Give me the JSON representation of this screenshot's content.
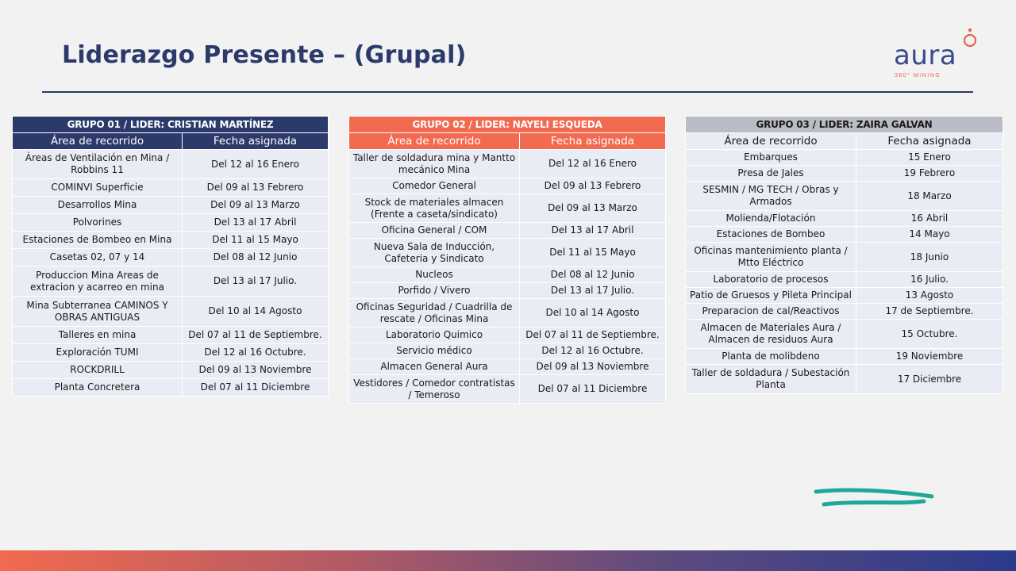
{
  "title": "Liderazgo Presente – (Grupal)",
  "logo": {
    "word": "aura",
    "tagline": "360° MINING"
  },
  "colors": {
    "navy": "#2b3a6b",
    "coral": "#f26a4f",
    "gray": "#b9bcc4",
    "teal": "#1fa89a"
  },
  "groups": [
    {
      "title": "GRUPO 01 / LIDER: CRISTIAN MARTÍNEZ",
      "headers": [
        "Área de recorrido",
        "Fecha asignada"
      ],
      "rows": [
        [
          "Áreas de Ventilación en Mina / Robbins 11",
          "Del 12 al 16 Enero"
        ],
        [
          "COMINVI Superficie",
          "Del 09 al 13 Febrero"
        ],
        [
          "Desarrollos Mina",
          "Del 09 al 13 Marzo"
        ],
        [
          "Polvorines",
          "Del 13 al 17 Abril"
        ],
        [
          "Estaciones de Bombeo en Mina",
          "Del 11 al 15 Mayo"
        ],
        [
          "Casetas 02, 07 y 14",
          "Del 08 al 12 Junio"
        ],
        [
          "Produccion Mina Areas de extracion y acarreo en mina",
          "Del 13 al 17 Julio."
        ],
        [
          "Mina Subterranea CAMINOS Y OBRAS ANTIGUAS",
          "Del 10 al 14 Agosto"
        ],
        [
          "Talleres en mina",
          "Del 07 al 11 de Septiembre."
        ],
        [
          "Exploración TUMI",
          "Del 12 al 16 Octubre."
        ],
        [
          "ROCKDRILL",
          "Del 09 al 13 Noviembre"
        ],
        [
          "Planta Concretera",
          "Del 07 al 11 Diciembre"
        ]
      ]
    },
    {
      "title": "GRUPO 02 / LIDER: NAYELI ESQUEDA",
      "headers": [
        "Área de recorrido",
        "Fecha asignada"
      ],
      "rows": [
        [
          "Taller de soldadura mina y Mantto mecánico Mina",
          "Del 12 al 16 Enero"
        ],
        [
          "Comedor General",
          "Del 09 al 13 Febrero"
        ],
        [
          "Stock de materiales almacen (Frente a caseta/sindicato)",
          "Del 09 al 13 Marzo"
        ],
        [
          "Oficina General / COM",
          "Del 13 al 17 Abril"
        ],
        [
          "Nueva Sala de Inducción, Cafeteria y Sindicato",
          "Del 11 al 15 Mayo"
        ],
        [
          "Nucleos",
          "Del 08 al 12 Junio"
        ],
        [
          "Porfido / Vivero",
          "Del 13 al 17 Julio."
        ],
        [
          "Oficinas Seguridad / Cuadrilla de rescate / Oficinas Mina",
          "Del 10 al 14 Agosto"
        ],
        [
          "Laboratorio Quimico",
          "Del 07 al 11 de Septiembre."
        ],
        [
          "Servicio  médico",
          "Del 12 al 16 Octubre."
        ],
        [
          "Almacen General Aura",
          "Del 09 al 13 Noviembre"
        ],
        [
          "Vestidores / Comedor contratistas / Temeroso",
          "Del 07 al 11 Diciembre"
        ]
      ]
    },
    {
      "title": "GRUPO 03 / LIDER: ZAIRA GALVAN",
      "headers": [
        "Área de recorrido",
        "Fecha asignada"
      ],
      "rows": [
        [
          "Embarques",
          "15 Enero"
        ],
        [
          "Presa de Jales",
          "19 Febrero"
        ],
        [
          "SESMIN / MG TECH / Obras y Armados",
          "18 Marzo"
        ],
        [
          "Molienda/Flotación",
          "16 Abril"
        ],
        [
          "Estaciones de Bombeo",
          "14 Mayo"
        ],
        [
          "Oficinas mantenimiento planta / Mtto Eléctrico",
          "18 Junio"
        ],
        [
          "Laboratorio de procesos",
          "16 Julio."
        ],
        [
          "Patio de Gruesos y Pileta Principal",
          "13 Agosto"
        ],
        [
          "Preparacion de cal/Reactivos",
          "17 de Septiembre."
        ],
        [
          "Almacen de Materiales Aura / Almacen de residuos Aura",
          "15 Octubre."
        ],
        [
          "Planta de molibdeno",
          "19 Noviembre"
        ],
        [
          "Taller de soldadura / Subestación Planta",
          "17 Diciembre"
        ]
      ]
    }
  ]
}
